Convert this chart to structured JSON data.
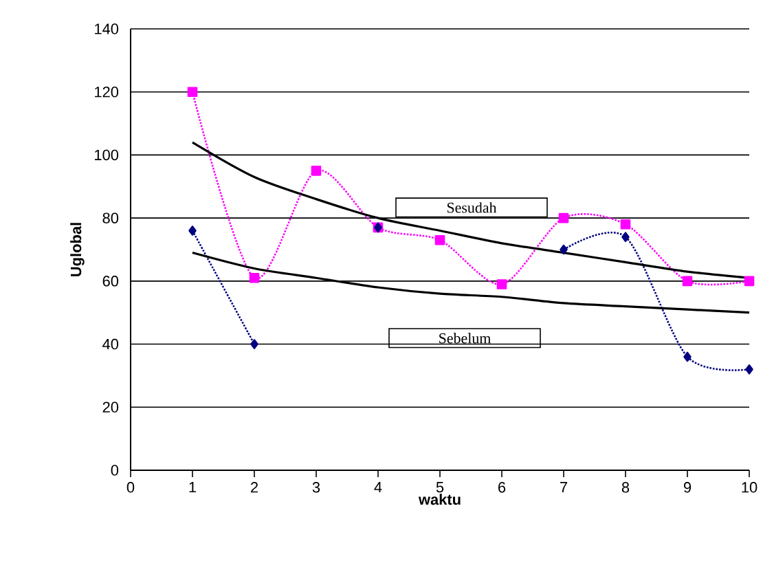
{
  "chart_data": {
    "type": "line",
    "xlabel": "waktu",
    "ylabel": "Uglobal",
    "x": [
      1,
      2,
      3,
      4,
      5,
      6,
      7,
      8,
      9,
      10
    ],
    "series": [
      {
        "color": "#ff00ff",
        "marker": "square",
        "line_style": "dotted",
        "values": [
          120,
          61,
          95,
          77,
          73,
          59,
          80,
          78,
          60,
          60
        ]
      },
      {
        "color": "#000080",
        "marker": "diamond",
        "line_style": "dotted",
        "values": [
          76,
          40,
          null,
          77,
          null,
          null,
          70,
          74,
          36,
          32
        ]
      },
      {
        "name": "Sesudah",
        "color": "#000000",
        "marker": "none",
        "line_style": "solid",
        "values": [
          104,
          93,
          86,
          80,
          76,
          72,
          69,
          66,
          63,
          61
        ]
      },
      {
        "name": "Sebelum",
        "color": "#000000",
        "marker": "none",
        "line_style": "solid",
        "values": [
          69,
          64,
          61,
          58,
          56,
          55,
          53,
          52,
          51,
          50
        ]
      }
    ],
    "xlim": [
      0,
      10
    ],
    "xticks": [
      0,
      1,
      2,
      3,
      4,
      5,
      6,
      7,
      8,
      9,
      10
    ],
    "ylim": [
      0,
      140
    ],
    "yticks": [
      0,
      20,
      40,
      60,
      80,
      100,
      120,
      140
    ],
    "grid": "y"
  }
}
